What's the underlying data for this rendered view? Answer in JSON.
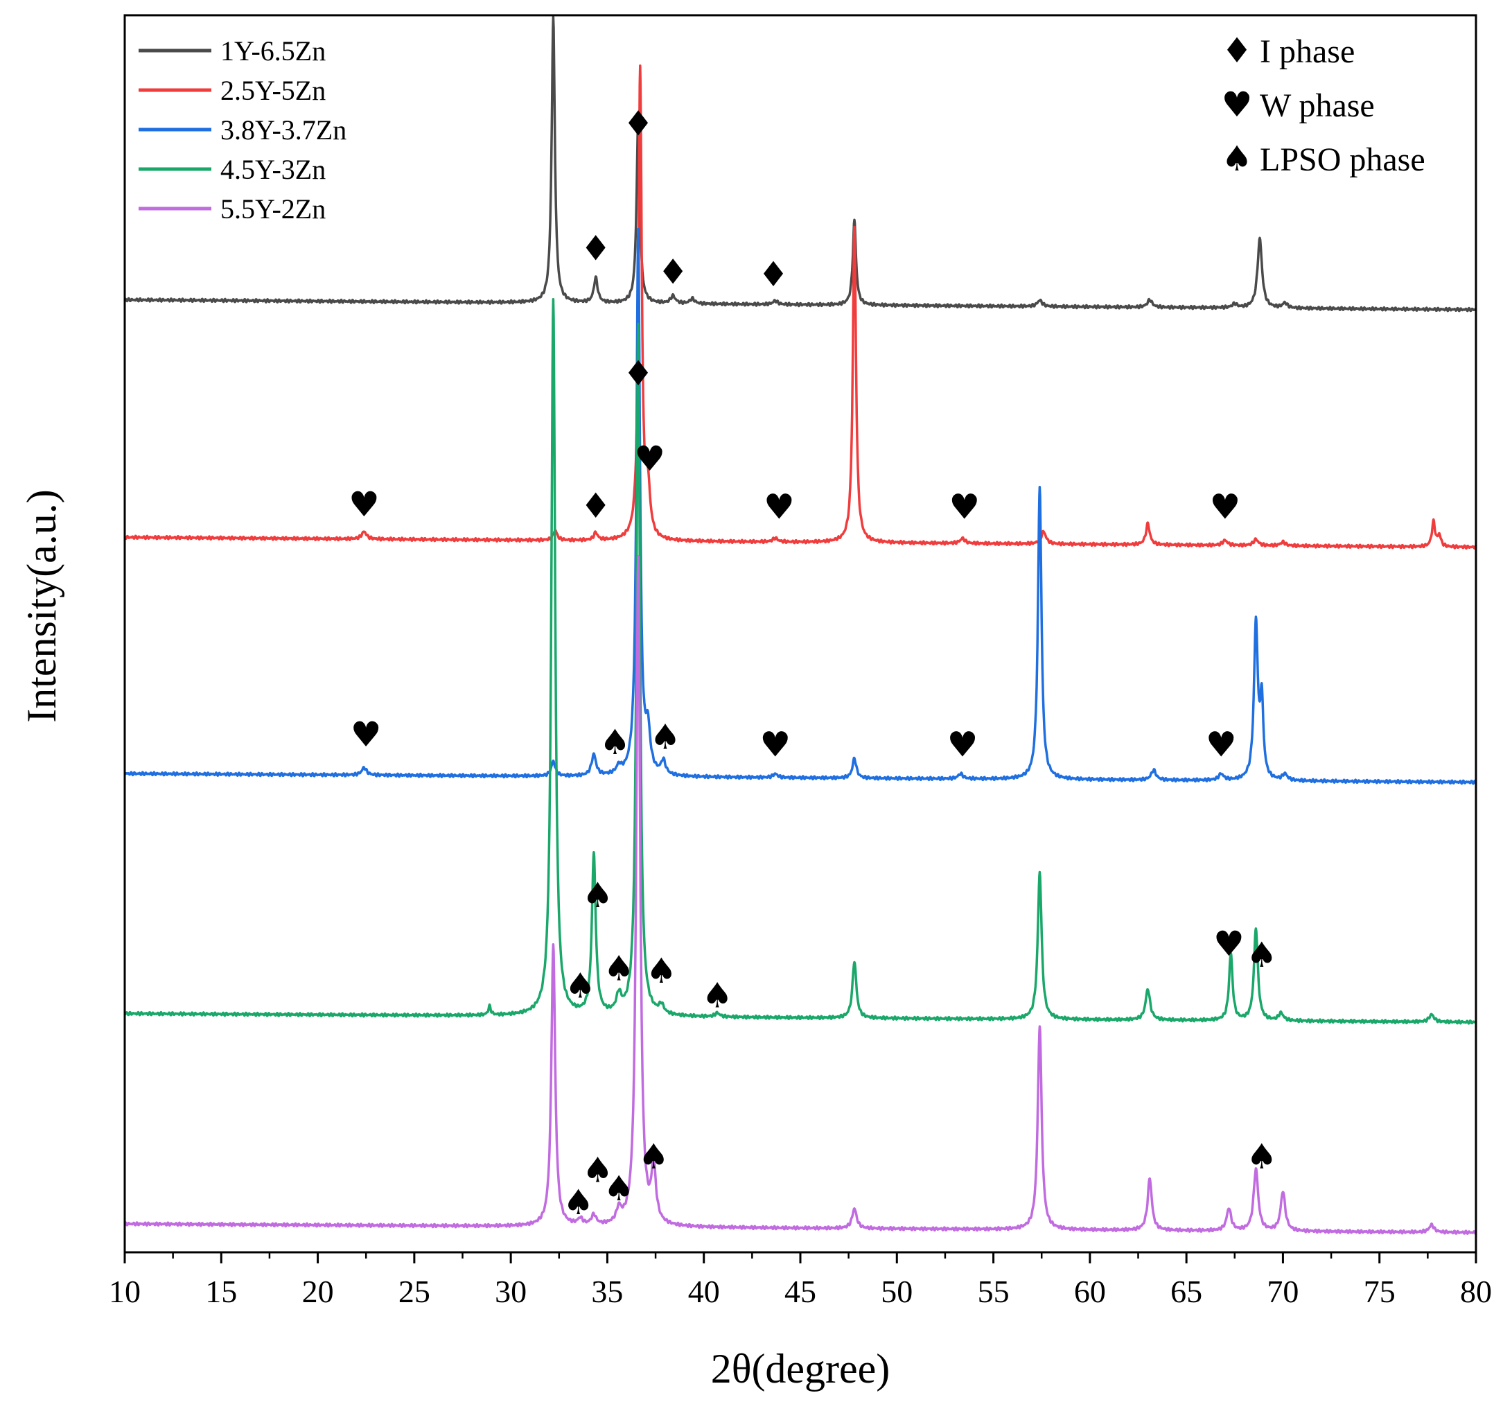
{
  "chart_data": {
    "type": "line",
    "title": "",
    "xlabel": "2θ(degree)",
    "ylabel": "Intensity(a.u.)",
    "xlim": [
      10,
      80
    ],
    "x_ticks": [
      "10",
      "15",
      "20",
      "25",
      "30",
      "35",
      "40",
      "45",
      "50",
      "55",
      "60",
      "65",
      "70",
      "75",
      "80"
    ],
    "y_ticks": [],
    "ylim": [
      0,
      100
    ],
    "legend_position": "top-left",
    "series": [
      {
        "name": "1Y-6.5Zn",
        "color": "#4a4a4a",
        "baseline": [
          [
            10,
            77.0
          ],
          [
            80,
            76.2
          ]
        ],
        "peaks": [
          [
            32.2,
            23,
            0.1
          ],
          [
            34.4,
            2.0,
            0.12
          ],
          [
            36.6,
            15,
            0.1
          ],
          [
            38.4,
            0.6,
            0.15
          ],
          [
            39.4,
            0.4,
            0.15
          ],
          [
            43.7,
            0.3,
            0.15
          ],
          [
            47.8,
            6.8,
            0.1
          ],
          [
            57.4,
            0.5,
            0.15
          ],
          [
            63.1,
            0.6,
            0.15
          ],
          [
            67.5,
            0.3,
            0.15
          ],
          [
            68.8,
            5.6,
            0.14
          ],
          [
            70.1,
            0.4,
            0.15
          ]
        ]
      },
      {
        "name": "2.5Y-5Zn",
        "color": "#f03c3c",
        "baseline": [
          [
            10,
            57.8
          ],
          [
            80,
            57.0
          ]
        ],
        "peaks": [
          [
            22.4,
            0.6,
            0.15
          ],
          [
            32.3,
            0.8,
            0.12
          ],
          [
            34.4,
            0.6,
            0.12
          ],
          [
            36.7,
            38,
            0.1
          ],
          [
            37.1,
            3.8,
            0.14
          ],
          [
            43.7,
            0.3,
            0.15
          ],
          [
            47.8,
            25.5,
            0.1
          ],
          [
            53.4,
            0.4,
            0.15
          ],
          [
            57.6,
            1.0,
            0.15
          ],
          [
            63.0,
            1.7,
            0.12
          ],
          [
            67.0,
            0.4,
            0.15
          ],
          [
            68.6,
            0.5,
            0.15
          ],
          [
            70.0,
            0.3,
            0.15
          ],
          [
            77.8,
            2.0,
            0.1
          ],
          [
            78.1,
            0.9,
            0.1
          ]
        ]
      },
      {
        "name": "3.8Y-3.7Zn",
        "color": "#1f6fe0",
        "baseline": [
          [
            10,
            38.7
          ],
          [
            80,
            38.0
          ]
        ],
        "peaks": [
          [
            22.4,
            0.6,
            0.15
          ],
          [
            32.2,
            1.2,
            0.12
          ],
          [
            34.3,
            1.7,
            0.14
          ],
          [
            35.6,
            0.6,
            0.15
          ],
          [
            36.6,
            44,
            0.11
          ],
          [
            37.1,
            3.2,
            0.14
          ],
          [
            37.9,
            1.1,
            0.14
          ],
          [
            43.7,
            0.3,
            0.15
          ],
          [
            47.8,
            1.6,
            0.12
          ],
          [
            53.3,
            0.4,
            0.15
          ],
          [
            57.4,
            23.7,
            0.11
          ],
          [
            63.3,
            0.8,
            0.15
          ],
          [
            66.8,
            0.5,
            0.15
          ],
          [
            68.6,
            12.6,
            0.12
          ],
          [
            68.9,
            6.1,
            0.1
          ],
          [
            70.1,
            0.5,
            0.15
          ]
        ]
      },
      {
        "name": "4.5Y-3Zn",
        "color": "#1aa76a",
        "baseline": [
          [
            10,
            19.3
          ],
          [
            80,
            18.6
          ]
        ],
        "peaks": [
          [
            28.9,
            0.7,
            0.08
          ],
          [
            32.2,
            58,
            0.12
          ],
          [
            34.3,
            12.9,
            0.12
          ],
          [
            35.6,
            1.4,
            0.15
          ],
          [
            36.6,
            56,
            0.11
          ],
          [
            37.8,
            0.7,
            0.15
          ],
          [
            40.7,
            0.3,
            0.15
          ],
          [
            47.8,
            4.6,
            0.12
          ],
          [
            57.4,
            11.9,
            0.12
          ],
          [
            63.0,
            2.5,
            0.14
          ],
          [
            67.3,
            5.4,
            0.11
          ],
          [
            68.6,
            7.5,
            0.12
          ],
          [
            69.9,
            0.6,
            0.15
          ],
          [
            77.7,
            0.6,
            0.15
          ]
        ]
      },
      {
        "name": "5.5Y-2Zn",
        "color": "#c16be0",
        "baseline": [
          [
            10,
            2.3
          ],
          [
            80,
            1.6
          ]
        ],
        "peaks": [
          [
            32.2,
            22.7,
            0.12
          ],
          [
            33.6,
            0.5,
            0.15
          ],
          [
            34.3,
            0.8,
            0.15
          ],
          [
            35.6,
            1.1,
            0.15
          ],
          [
            36.6,
            54,
            0.12
          ],
          [
            37.4,
            4.4,
            0.14
          ],
          [
            47.8,
            1.6,
            0.14
          ],
          [
            57.4,
            16.5,
            0.12
          ],
          [
            63.1,
            4.2,
            0.13
          ],
          [
            67.2,
            1.8,
            0.14
          ],
          [
            68.6,
            5.0,
            0.14
          ],
          [
            70.0,
            3.2,
            0.14
          ],
          [
            77.7,
            0.6,
            0.15
          ]
        ]
      }
    ],
    "phase_legend": [
      {
        "symbol": "♦",
        "label": "I phase"
      },
      {
        "symbol": "♥",
        "label": "W phase"
      },
      {
        "symbol": "♠",
        "label": "LPSO phase"
      }
    ],
    "annotations": [
      {
        "symbol": "♦",
        "x": 36.6,
        "y": 91.3
      },
      {
        "symbol": "♦",
        "x": 34.4,
        "y": 81.2
      },
      {
        "symbol": "♦",
        "x": 38.4,
        "y": 79.3
      },
      {
        "symbol": "♦",
        "x": 43.6,
        "y": 79.1
      },
      {
        "symbol": "♦",
        "x": 36.6,
        "y": 71.1
      },
      {
        "symbol": "♥",
        "x": 37.2,
        "y": 64.2
      },
      {
        "symbol": "♥",
        "x": 22.4,
        "y": 60.5
      },
      {
        "symbol": "♦",
        "x": 34.4,
        "y": 60.4
      },
      {
        "symbol": "♥",
        "x": 43.9,
        "y": 60.3
      },
      {
        "symbol": "♥",
        "x": 53.5,
        "y": 60.3
      },
      {
        "symbol": "♥",
        "x": 67.0,
        "y": 60.3
      },
      {
        "symbol": "♥",
        "x": 22.5,
        "y": 41.9
      },
      {
        "symbol": "♠",
        "x": 35.4,
        "y": 41.3
      },
      {
        "symbol": "♠",
        "x": 38.0,
        "y": 41.7
      },
      {
        "symbol": "♥",
        "x": 43.7,
        "y": 41.1
      },
      {
        "symbol": "♥",
        "x": 53.4,
        "y": 41.1
      },
      {
        "symbol": "♥",
        "x": 66.8,
        "y": 41.1
      },
      {
        "symbol": "♠",
        "x": 34.5,
        "y": 28.9
      },
      {
        "symbol": "♥",
        "x": 67.2,
        "y": 25.0
      },
      {
        "symbol": "♠",
        "x": 68.9,
        "y": 24.1
      },
      {
        "symbol": "♠",
        "x": 35.6,
        "y": 23.0
      },
      {
        "symbol": "♠",
        "x": 37.8,
        "y": 22.8
      },
      {
        "symbol": "♠",
        "x": 33.6,
        "y": 21.6
      },
      {
        "symbol": "♠",
        "x": 40.7,
        "y": 20.8
      },
      {
        "symbol": "♠",
        "x": 34.5,
        "y": 6.7
      },
      {
        "symbol": "♠",
        "x": 37.4,
        "y": 7.8
      },
      {
        "symbol": "♠",
        "x": 68.9,
        "y": 7.8
      },
      {
        "symbol": "♠",
        "x": 35.6,
        "y": 5.2
      },
      {
        "symbol": "♠",
        "x": 33.5,
        "y": 4.1
      }
    ]
  }
}
